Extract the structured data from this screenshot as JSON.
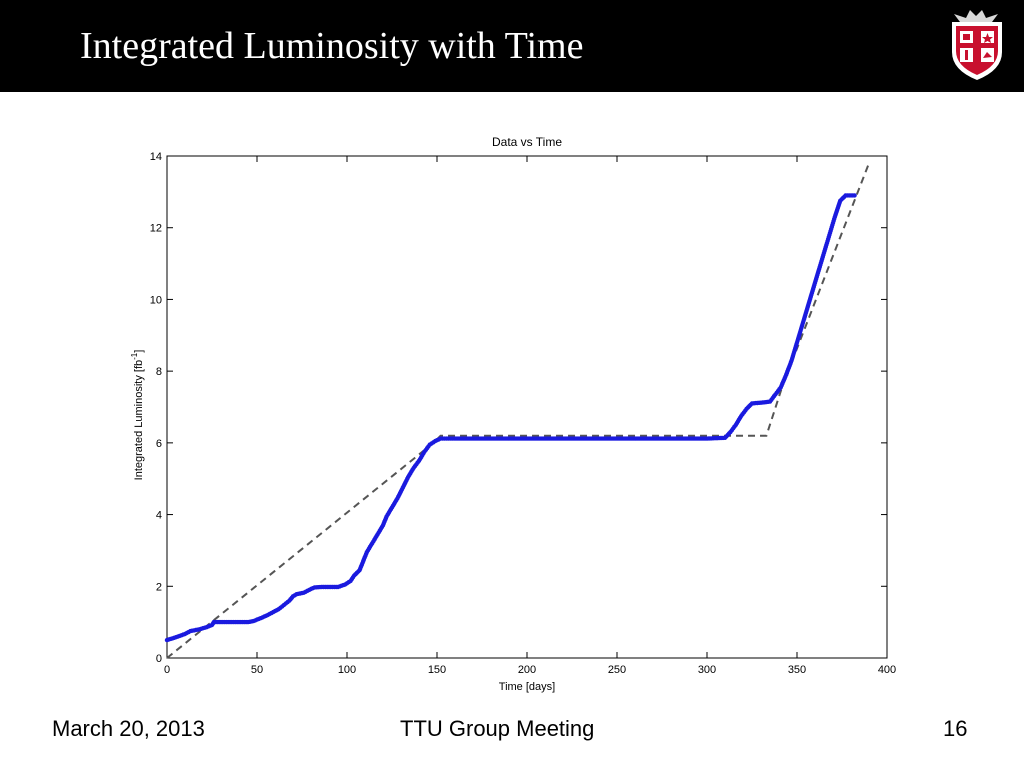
{
  "slide": {
    "title": "Integrated Luminosity with Time",
    "footer_date": "March 20, 2013",
    "footer_event": "TTU Group Meeting",
    "page_number": "16",
    "logo_icon": "ttu-shield-icon",
    "colors": {
      "title_bar": "#000000",
      "title_text": "#ffffff",
      "data_series": "#1a1adf",
      "fit_line": "#555555",
      "shield_red": "#c8102e"
    }
  },
  "chart_data": {
    "type": "scatter",
    "title": "Data vs Time",
    "xlabel": "Time [days]",
    "ylabel_main": "Integrated Luminosity [fb",
    "ylabel_sup": "-1",
    "ylabel_end": "]",
    "xlim": [
      0,
      400
    ],
    "ylim": [
      0,
      14
    ],
    "x_ticks": [
      0,
      50,
      100,
      150,
      200,
      250,
      300,
      350,
      400
    ],
    "y_ticks": [
      0,
      2,
      4,
      6,
      8,
      10,
      12,
      14
    ],
    "grid": false,
    "legend": "none",
    "series": [
      {
        "style": "points",
        "color": "#1a1adf",
        "points": [
          [
            0,
            0.5
          ],
          [
            5,
            0.58
          ],
          [
            10,
            0.67
          ],
          [
            13,
            0.75
          ],
          [
            18,
            0.8
          ],
          [
            22,
            0.86
          ],
          [
            25,
            0.92
          ],
          [
            26,
            1.0
          ],
          [
            30,
            1.0
          ],
          [
            35,
            1.0
          ],
          [
            40,
            1.0
          ],
          [
            45,
            1.0
          ],
          [
            48,
            1.03
          ],
          [
            50,
            1.07
          ],
          [
            53,
            1.13
          ],
          [
            56,
            1.2
          ],
          [
            59,
            1.28
          ],
          [
            62,
            1.36
          ],
          [
            65,
            1.48
          ],
          [
            68,
            1.6
          ],
          [
            70,
            1.72
          ],
          [
            72,
            1.78
          ],
          [
            76,
            1.82
          ],
          [
            79,
            1.9
          ],
          [
            82,
            1.97
          ],
          [
            86,
            1.98
          ],
          [
            90,
            1.98
          ],
          [
            95,
            1.98
          ],
          [
            99,
            2.05
          ],
          [
            102,
            2.15
          ],
          [
            104,
            2.3
          ],
          [
            107,
            2.45
          ],
          [
            109,
            2.7
          ],
          [
            111,
            2.95
          ],
          [
            114,
            3.2
          ],
          [
            117,
            3.45
          ],
          [
            120,
            3.7
          ],
          [
            122,
            3.95
          ],
          [
            125,
            4.2
          ],
          [
            128,
            4.45
          ],
          [
            131,
            4.75
          ],
          [
            134,
            5.05
          ],
          [
            137,
            5.3
          ],
          [
            140,
            5.5
          ],
          [
            143,
            5.75
          ],
          [
            146,
            5.95
          ],
          [
            149,
            6.05
          ],
          [
            152,
            6.12
          ],
          [
            160,
            6.12
          ],
          [
            180,
            6.12
          ],
          [
            200,
            6.12
          ],
          [
            220,
            6.12
          ],
          [
            240,
            6.12
          ],
          [
            260,
            6.12
          ],
          [
            280,
            6.12
          ],
          [
            300,
            6.12
          ],
          [
            310,
            6.14
          ],
          [
            313,
            6.3
          ],
          [
            316,
            6.5
          ],
          [
            319,
            6.75
          ],
          [
            322,
            6.95
          ],
          [
            325,
            7.1
          ],
          [
            330,
            7.12
          ],
          [
            335,
            7.15
          ],
          [
            338,
            7.35
          ],
          [
            341,
            7.55
          ],
          [
            344,
            7.9
          ],
          [
            347,
            8.3
          ],
          [
            350,
            8.8
          ],
          [
            353,
            9.3
          ],
          [
            356,
            9.8
          ],
          [
            359,
            10.3
          ],
          [
            362,
            10.8
          ],
          [
            365,
            11.3
          ],
          [
            368,
            11.8
          ],
          [
            371,
            12.3
          ],
          [
            374,
            12.75
          ],
          [
            377,
            12.9
          ],
          [
            382,
            12.9
          ]
        ]
      },
      {
        "style": "dashed-line",
        "color": "#555555",
        "points": [
          [
            0,
            0
          ],
          [
            148,
            6.0
          ],
          [
            152,
            6.2
          ],
          [
            312,
            6.2
          ],
          [
            333,
            6.2
          ],
          [
            342,
            7.6
          ],
          [
            390,
            13.8
          ]
        ]
      }
    ]
  }
}
